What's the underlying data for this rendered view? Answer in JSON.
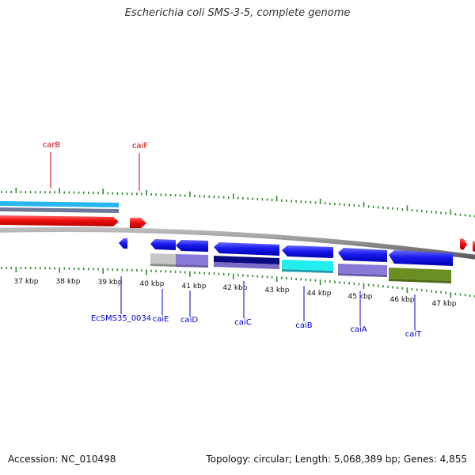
{
  "title": "Escherichia coli SMS-3-5, complete genome",
  "footer": {
    "accession": "Accession: NC_010498",
    "topology": "Topology: circular; Length: 5,068,389 bp; Genes: 4,855"
  },
  "colors": {
    "tick": "#2d8a2d",
    "label_forward": "#cc0000",
    "label_reverse": "#0000cc",
    "backbone": "#8a8a8a"
  },
  "kbp_labels": [
    "37 kbp",
    "38 kbp",
    "39 kbp",
    "40 kbp",
    "41 kbp",
    "42 kbp",
    "43 kbp",
    "44 kbp",
    "45 kbp",
    "46 kbp",
    "47 kbp"
  ],
  "top_labels": [
    {
      "text": "carB",
      "strand": "forward"
    },
    {
      "text": "caiF",
      "strand": "forward"
    }
  ],
  "bottom_labels": [
    {
      "text": "EcSMS35_0034",
      "strand": "reverse"
    },
    {
      "text": "caiE",
      "strand": "reverse"
    },
    {
      "text": "caiD",
      "strand": "reverse"
    },
    {
      "text": "caiC",
      "strand": "reverse"
    },
    {
      "text": "caiB",
      "strand": "reverse"
    },
    {
      "text": "caiA",
      "strand": "reverse"
    },
    {
      "text": "caiT",
      "strand": "reverse"
    }
  ]
}
